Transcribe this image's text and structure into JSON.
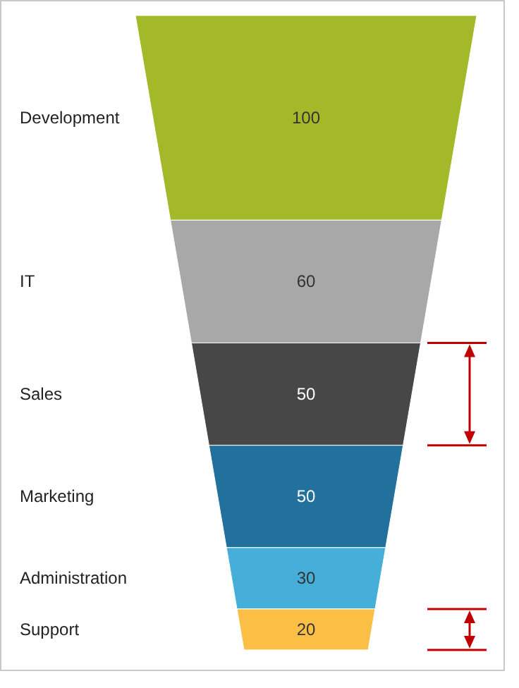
{
  "chart_data": {
    "type": "other",
    "categories": [
      "Development",
      "IT",
      "Sales",
      "Marketing",
      "Administration",
      "Support"
    ],
    "values": [
      100,
      60,
      50,
      50,
      30,
      20
    ],
    "colors": [
      "#a4b92a",
      "#a8a8a8",
      "#474747",
      "#22709c",
      "#46afd9",
      "#fbbf45"
    ],
    "data_labels": true
  }
}
